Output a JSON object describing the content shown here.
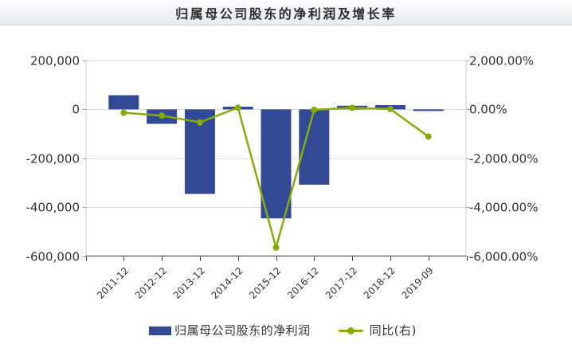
{
  "title": "归属母公司股东的净利润及增长率",
  "colors": {
    "bar": "#324A96",
    "line": "#87AB0A",
    "grid": "#D9D9D9",
    "plot_border": "#CCCCCC",
    "axis_line": "#333333",
    "tick": "#999999",
    "label": "#333333",
    "title_text": "#2D2D2D",
    "titlebar_top": "#FCFCFD",
    "titlebar_bottom": "#E9EBEE",
    "background": "#FFFFFF"
  },
  "chart_data": {
    "type": "bar",
    "subtype": "bar+line combo, dual y-axis",
    "categories": [
      "2011-12",
      "2012-12",
      "2013-12",
      "2014-12",
      "2015-12",
      "2016-12",
      "2017-12",
      "2018-12",
      "2019-09"
    ],
    "series": [
      {
        "name": "归属母公司股东的净利润",
        "type": "bar",
        "axis": "left",
        "values": [
          58000,
          -59000,
          -346000,
          11000,
          -446000,
          -308000,
          15000,
          17500,
          -4000
        ]
      },
      {
        "name": "同比(右)",
        "type": "line",
        "axis": "right",
        "values": [
          -135,
          -255,
          -530,
          70,
          -5655,
          -15,
          65,
          15,
          -1110
        ]
      }
    ],
    "title": "归属母公司股东的净利润及增长率",
    "left_axis": {
      "tick_labels": [
        "200,000",
        "0",
        "-200,000",
        "-400,000",
        "-600,000"
      ],
      "tick_values": [
        200000,
        0,
        -200000,
        -400000,
        -600000
      ],
      "min": -600000,
      "max": 200000
    },
    "right_axis": {
      "tick_labels": [
        "2,000.00%",
        "0.00%",
        "-2,000.00%",
        "-4,000.00%",
        "-6,000.00%"
      ],
      "tick_values": [
        2000,
        0,
        -2000,
        -4000,
        -6000
      ],
      "min": -6000,
      "max": 2000
    },
    "grid": true,
    "legend_position": "bottom"
  }
}
